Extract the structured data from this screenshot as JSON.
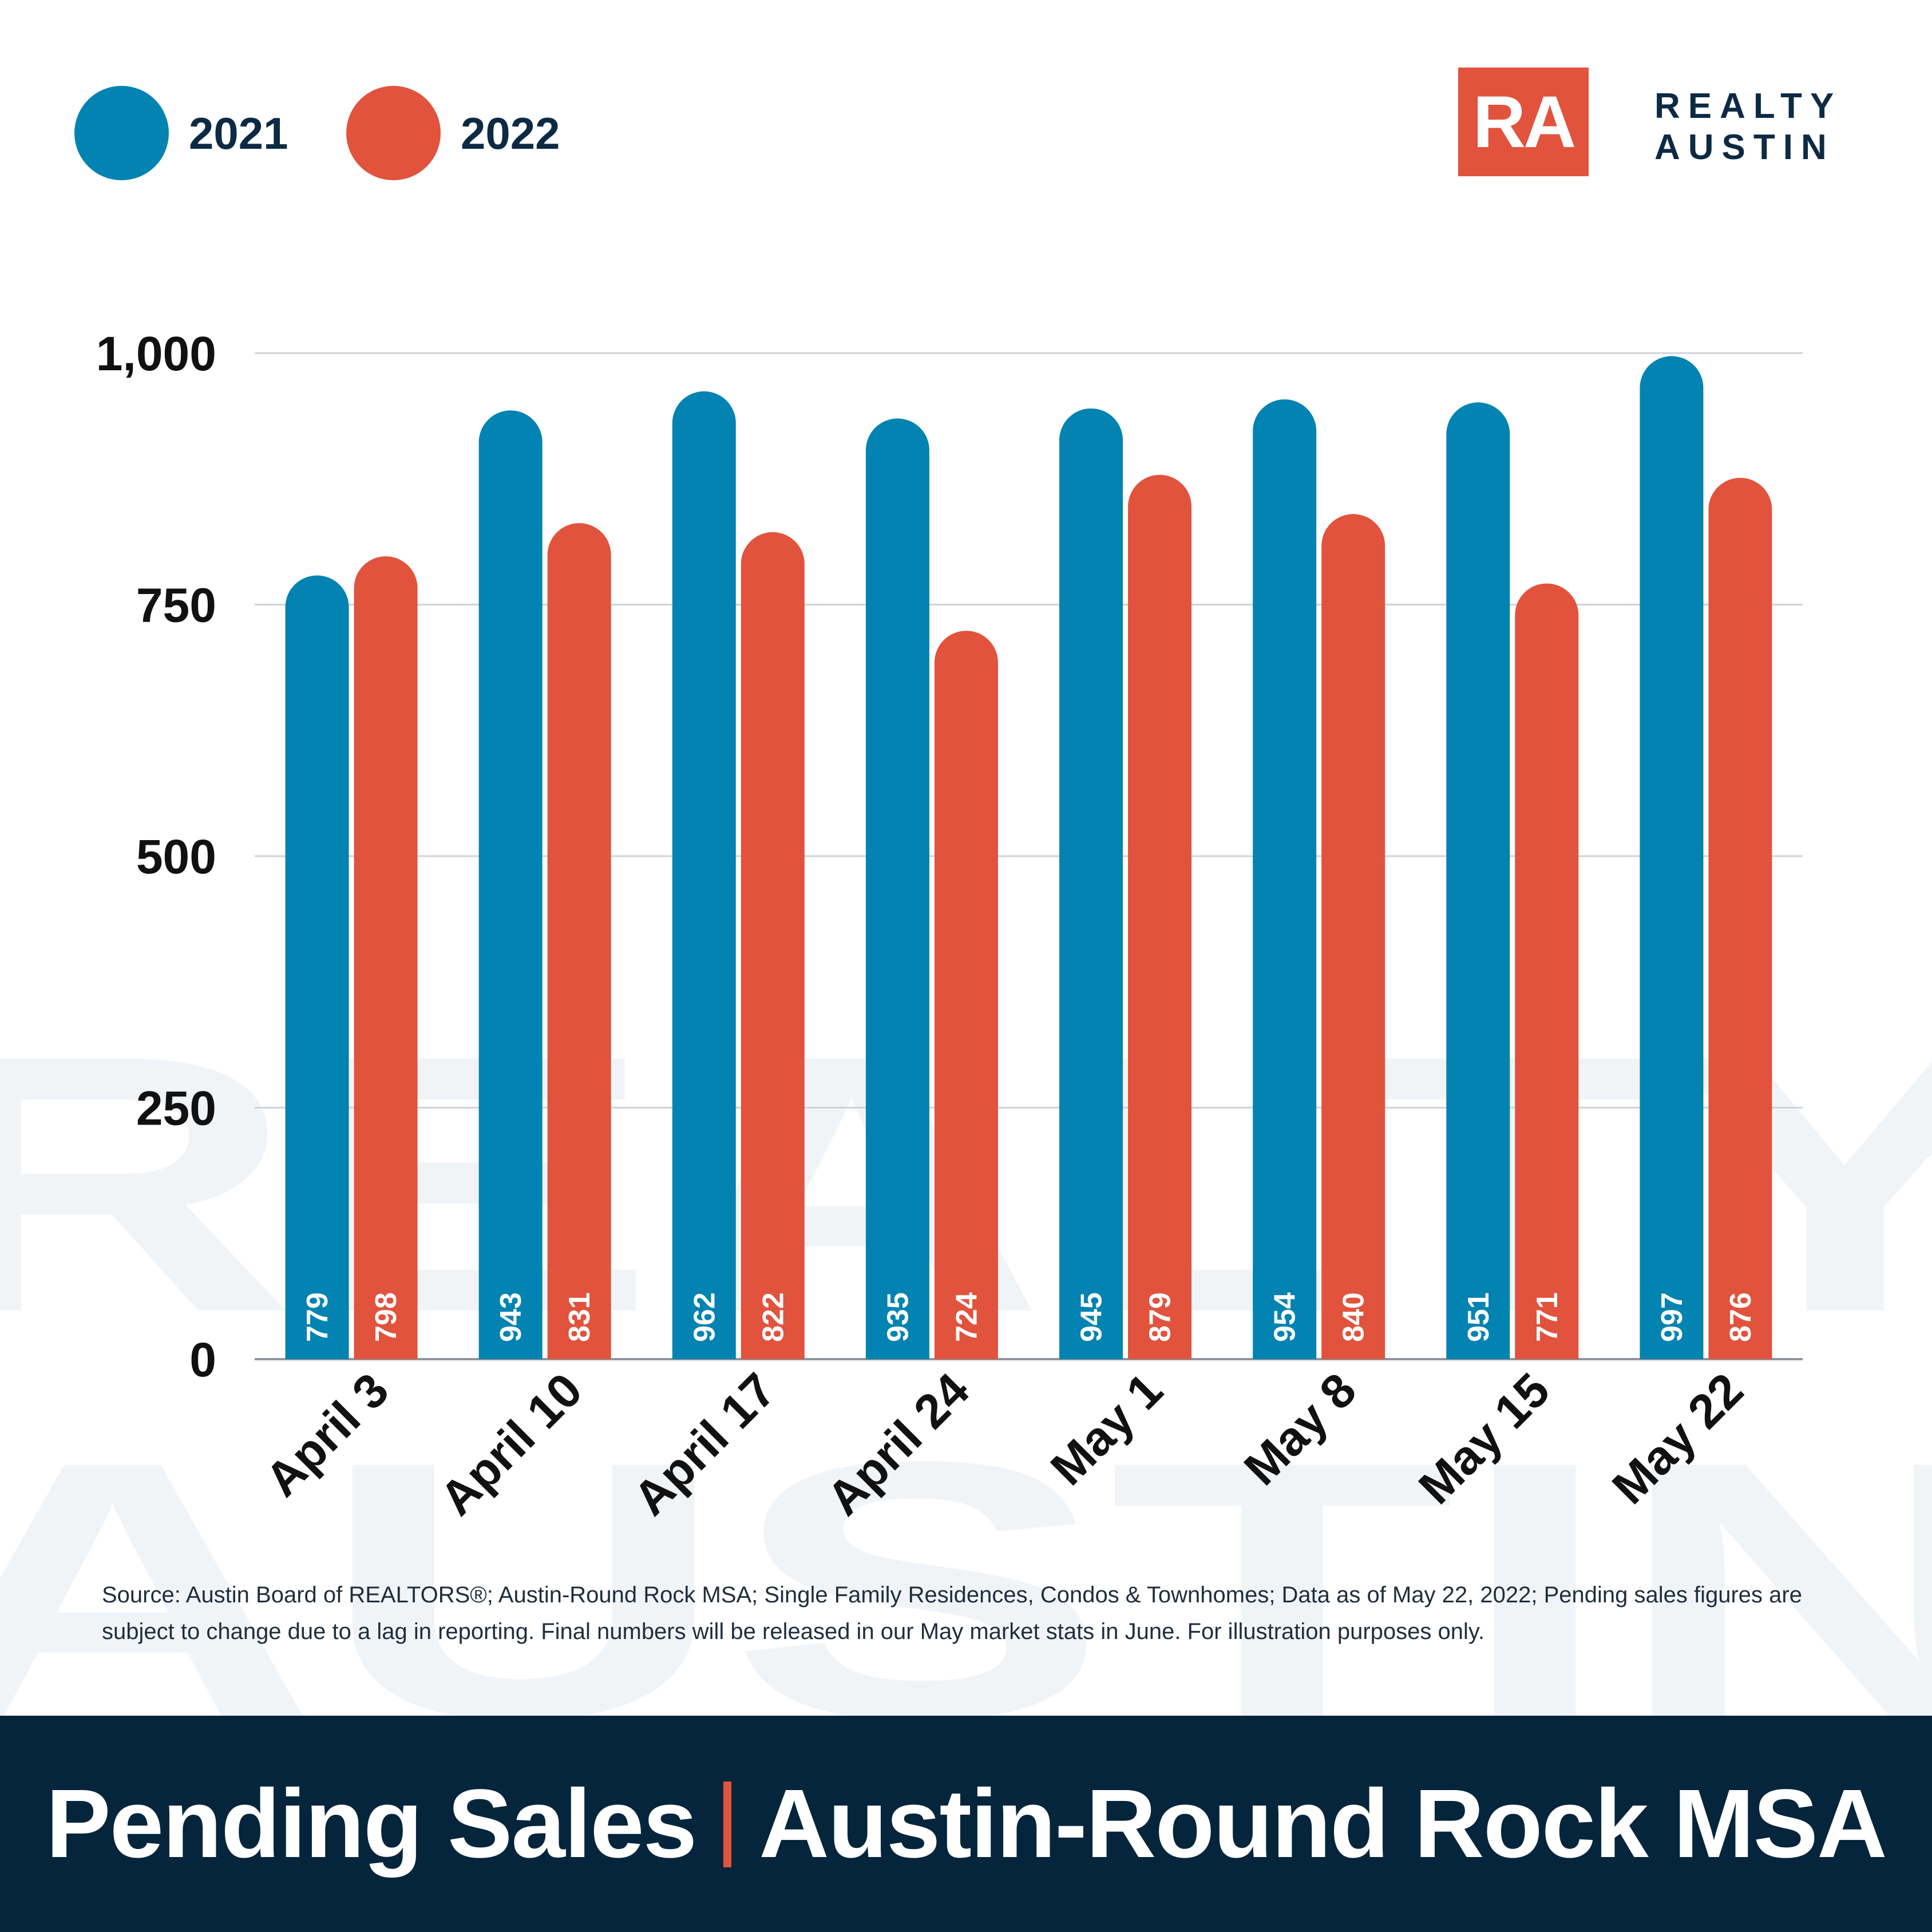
{
  "legend": {
    "items": [
      {
        "label": "2021",
        "color": "#0283b1"
      },
      {
        "label": "2022",
        "color": "#e1533d"
      }
    ]
  },
  "logo": {
    "mark": "RA",
    "word_line1": "REALTY",
    "word_line2": "AUSTIN",
    "color": "#e1533d"
  },
  "watermark": {
    "line1": "REALTY",
    "line2": "AUSTIN"
  },
  "chart_data": {
    "type": "bar",
    "categories": [
      "April 3",
      "April 10",
      "April 17",
      "April 24",
      "May 1",
      "May 8",
      "May 15",
      "May 22"
    ],
    "series": [
      {
        "name": "2021",
        "color": "#0283b1",
        "values": [
          779,
          943,
          962,
          935,
          945,
          954,
          951,
          997
        ]
      },
      {
        "name": "2022",
        "color": "#e1533d",
        "values": [
          798,
          831,
          822,
          724,
          879,
          840,
          771,
          876
        ]
      }
    ],
    "yticks": [
      "0",
      "250",
      "500",
      "750",
      "1,000"
    ],
    "ytick_values": [
      0,
      250,
      500,
      750,
      1000
    ],
    "ylim": [
      0,
      1000
    ],
    "grid": true,
    "legend_position": "top-left",
    "title": "",
    "xlabel": "",
    "ylabel": ""
  },
  "source_note": "Source: Austin Board of REALTORS®; Austin-Round Rock MSA; Single Family Residences, Condos & Townhomes; Data as of May 22, 2022; Pending sales figures are subject to change due to a lag in reporting. Final numbers will be released in our May market stats in June. For illustration purposes only.",
  "footer": {
    "title_part1": "Pending Sales",
    "title_part2": "Austin-Round Rock MSA",
    "background": "#04253b",
    "divider_color": "#e1533d"
  }
}
